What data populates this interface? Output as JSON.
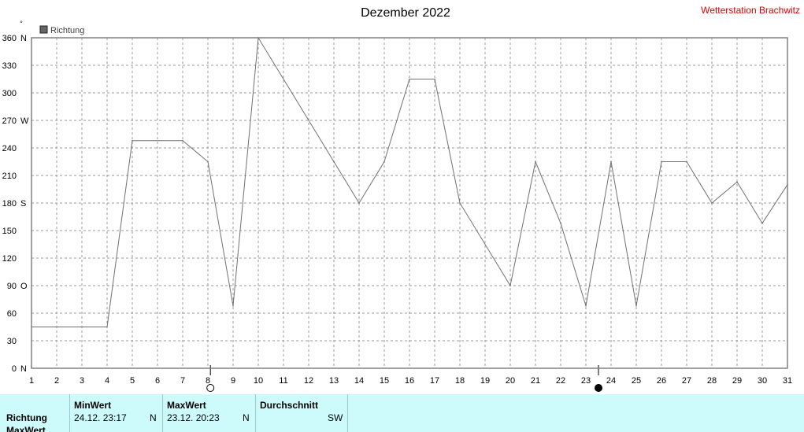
{
  "chart_data": {
    "type": "line",
    "title": "Dezember 2022",
    "station": "Wetterstation Brachwitz",
    "unit_symbol": "°",
    "legend": [
      {
        "name": "Richtung",
        "color": "#666666"
      }
    ],
    "ylim": [
      0,
      360
    ],
    "yticks": [
      {
        "value": 0,
        "label": "0",
        "dir": "N"
      },
      {
        "value": 30,
        "label": "30",
        "dir": ""
      },
      {
        "value": 60,
        "label": "60",
        "dir": ""
      },
      {
        "value": 90,
        "label": "90",
        "dir": "O"
      },
      {
        "value": 120,
        "label": "120",
        "dir": ""
      },
      {
        "value": 150,
        "label": "150",
        "dir": ""
      },
      {
        "value": 180,
        "label": "180",
        "dir": "S"
      },
      {
        "value": 210,
        "label": "210",
        "dir": ""
      },
      {
        "value": 240,
        "label": "240",
        "dir": ""
      },
      {
        "value": 270,
        "label": "270",
        "dir": "W"
      },
      {
        "value": 300,
        "label": "300",
        "dir": ""
      },
      {
        "value": 330,
        "label": "330",
        "dir": ""
      },
      {
        "value": 360,
        "label": "360",
        "dir": "N"
      }
    ],
    "xlim": [
      1,
      31
    ],
    "xticks": [
      "1",
      "2",
      "3",
      "4",
      "5",
      "6",
      "7",
      "8",
      "9",
      "10",
      "11",
      "12",
      "13",
      "14",
      "15",
      "16",
      "17",
      "18",
      "19",
      "20",
      "21",
      "22",
      "23",
      "24",
      "25",
      "26",
      "27",
      "28",
      "29",
      "30",
      "31"
    ],
    "grid": true,
    "series": [
      {
        "name": "Richtung",
        "color": "#707070",
        "x": [
          1,
          4,
          5,
          7,
          8,
          9,
          10,
          13,
          14,
          15,
          16,
          17,
          18,
          20,
          21,
          22,
          23,
          24,
          25,
          26,
          27,
          28,
          29,
          30,
          31
        ],
        "y": [
          45,
          45,
          248,
          248,
          225,
          68,
          360,
          225,
          180,
          225,
          315,
          315,
          180,
          90,
          225,
          158,
          68,
          225,
          68,
          225,
          225,
          180,
          203,
          158,
          200
        ]
      }
    ],
    "moon_markers": [
      {
        "x": 8.1,
        "phase": "full"
      },
      {
        "x": 23.5,
        "phase": "new"
      }
    ]
  },
  "table": {
    "headers": {
      "min": "MinWert",
      "max": "MaxWert",
      "avg": "Durchschnitt"
    },
    "rows": [
      {
        "label": "Richtung",
        "min_time": "24.12.  23:17",
        "min_dir": "N",
        "max_time": "23.12.  20:23",
        "max_dir": "N",
        "avg": "SW"
      },
      {
        "label": "MaxWert"
      }
    ]
  }
}
